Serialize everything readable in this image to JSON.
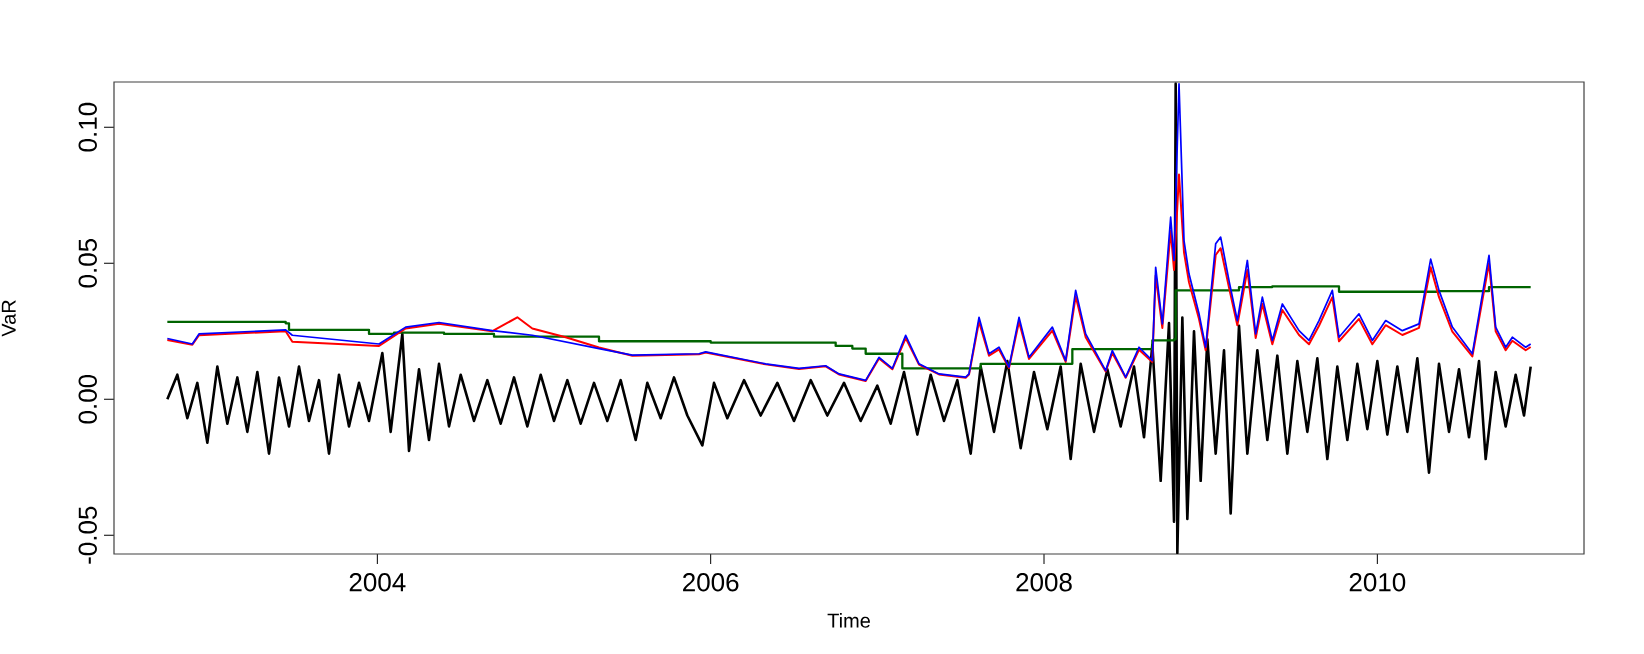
{
  "chart_data": {
    "type": "line",
    "xlabel": "Time",
    "ylabel": "VaR",
    "xlim": [
      2002.42,
      2011.24
    ],
    "ylim": [
      -0.0569,
      0.1166
    ],
    "xticks": [
      2004,
      2006,
      2008,
      2010
    ],
    "yticks": [
      {
        "value": -0.05,
        "label": "-0.05"
      },
      {
        "value": 0,
        "label": "0.00"
      },
      {
        "value": 0.05,
        "label": "0.05"
      },
      {
        "value": 0.1,
        "label": "0.10"
      }
    ],
    "series": [
      {
        "color": "#000000",
        "x": [
          2002.74,
          2002.8,
          2002.86,
          2002.92,
          2002.98,
          2003.04,
          2003.1,
          2003.16,
          2003.22,
          2003.28,
          2003.35,
          2003.41,
          2003.47,
          2003.53,
          2003.59,
          2003.65,
          2003.71,
          2003.77,
          2003.83,
          2003.89,
          2003.95,
          2004.03,
          2004.08,
          2004.15,
          2004.19,
          2004.25,
          2004.31,
          2004.37,
          2004.43,
          2004.5,
          2004.58,
          2004.66,
          2004.74,
          2004.82,
          2004.9,
          2004.98,
          2005.06,
          2005.14,
          2005.22,
          2005.3,
          2005.38,
          2005.46,
          2005.55,
          2005.62,
          2005.7,
          2005.78,
          2005.86,
          2005.95,
          2006.02,
          2006.1,
          2006.2,
          2006.3,
          2006.4,
          2006.5,
          2006.6,
          2006.7,
          2006.8,
          2006.9,
          2007.0,
          2007.08,
          2007.16,
          2007.24,
          2007.32,
          2007.4,
          2007.48,
          2007.56,
          2007.62,
          2007.7,
          2007.78,
          2007.86,
          2007.94,
          2008.02,
          2008.1,
          2008.16,
          2008.22,
          2008.3,
          2008.38,
          2008.46,
          2008.54,
          2008.6,
          2008.65,
          2008.7,
          2008.75,
          2008.78,
          2008.79,
          2008.8,
          2008.83,
          2008.86,
          2008.9,
          2008.94,
          2008.98,
          2009.03,
          2009.08,
          2009.12,
          2009.17,
          2009.22,
          2009.28,
          2009.34,
          2009.4,
          2009.46,
          2009.52,
          2009.58,
          2009.64,
          2009.7,
          2009.76,
          2009.82,
          2009.88,
          2009.94,
          2010.0,
          2010.06,
          2010.12,
          2010.18,
          2010.24,
          2010.31,
          2010.37,
          2010.43,
          2010.49,
          2010.55,
          2010.61,
          2010.65,
          2010.71,
          2010.77,
          2010.83,
          2010.88,
          2010.92
        ],
        "values": [
          0.0,
          0.009,
          -0.007,
          0.006,
          -0.016,
          0.012,
          -0.009,
          0.008,
          -0.012,
          0.01,
          -0.02,
          0.008,
          -0.01,
          0.012,
          -0.008,
          0.007,
          -0.02,
          0.009,
          -0.01,
          0.006,
          -0.008,
          0.017,
          -0.012,
          0.024,
          -0.019,
          0.011,
          -0.015,
          0.013,
          -0.01,
          0.009,
          -0.008,
          0.007,
          -0.009,
          0.008,
          -0.01,
          0.009,
          -0.008,
          0.007,
          -0.009,
          0.006,
          -0.008,
          0.007,
          -0.015,
          0.006,
          -0.007,
          0.008,
          -0.006,
          -0.017,
          0.006,
          -0.007,
          0.007,
          -0.006,
          0.006,
          -0.008,
          0.007,
          -0.006,
          0.006,
          -0.008,
          0.005,
          -0.009,
          0.01,
          -0.013,
          0.009,
          -0.008,
          0.007,
          -0.02,
          0.012,
          -0.012,
          0.014,
          -0.018,
          0.01,
          -0.011,
          0.012,
          -0.022,
          0.013,
          -0.012,
          0.011,
          -0.01,
          0.012,
          -0.014,
          0.02,
          -0.03,
          0.028,
          -0.045,
          0.116,
          -0.0565,
          0.03,
          -0.044,
          0.025,
          -0.03,
          0.022,
          -0.02,
          0.018,
          -0.042,
          0.027,
          -0.02,
          0.018,
          -0.015,
          0.016,
          -0.02,
          0.014,
          -0.012,
          0.015,
          -0.022,
          0.012,
          -0.015,
          0.013,
          -0.011,
          0.014,
          -0.013,
          0.012,
          -0.012,
          0.015,
          -0.027,
          0.013,
          -0.012,
          0.011,
          -0.014,
          0.014,
          -0.022,
          0.01,
          -0.01,
          0.009,
          -0.006,
          0.012
        ]
      },
      {
        "color": "#006400",
        "type": "step",
        "x": [
          2002.74,
          2003.45,
          2003.47,
          2003.95,
          2004.1,
          2004.4,
          2004.7,
          2005.33,
          2006.0,
          2006.75,
          2006.85,
          2006.93,
          2007.15,
          2007.57,
          2007.62,
          2008.17,
          2008.65,
          2008.78,
          2008.79,
          2009.17,
          2009.37,
          2009.77,
          2010.37,
          2010.67,
          2010.92
        ],
        "values": [
          0.0284,
          0.0279,
          0.0255,
          0.024,
          0.0245,
          0.024,
          0.023,
          0.0213,
          0.0208,
          0.0196,
          0.0186,
          0.0167,
          0.0113,
          0.0113,
          0.013,
          0.0184,
          0.0216,
          0.022,
          0.04,
          0.0412,
          0.0415,
          0.0395,
          0.0397,
          0.0412,
          0.0412
        ]
      },
      {
        "color": "#ff0000",
        "x": [
          2002.74,
          2002.89,
          2002.93,
          2003.45,
          2003.49,
          2004.01,
          2004.17,
          2004.37,
          2004.69,
          2004.84,
          2004.93,
          2005.13,
          2005.33,
          2005.53,
          2005.93,
          2005.97,
          2006.33,
          2006.53,
          2006.69,
          2006.77,
          2006.93,
          2007.01,
          2007.09,
          2007.17,
          2007.25,
          2007.37,
          2007.53,
          2007.55,
          2007.61,
          2007.67,
          2007.73,
          2007.79,
          2007.85,
          2007.91,
          2008.05,
          2008.13,
          2008.19,
          2008.25,
          2008.37,
          2008.41,
          2008.49,
          2008.57,
          2008.65,
          2008.67,
          2008.71,
          2008.76,
          2008.78,
          2008.81,
          2008.84,
          2008.87,
          2008.93,
          2008.97,
          2009.03,
          2009.06,
          2009.11,
          2009.16,
          2009.22,
          2009.27,
          2009.31,
          2009.37,
          2009.43,
          2009.53,
          2009.59,
          2009.65,
          2009.73,
          2009.77,
          2009.89,
          2009.97,
          2010.05,
          2010.15,
          2010.25,
          2010.32,
          2010.37,
          2010.45,
          2010.57,
          2010.67,
          2010.71,
          2010.77,
          2010.81,
          2010.89,
          2010.92
        ],
        "values": [
          0.0218,
          0.02,
          0.0235,
          0.025,
          0.0211,
          0.0196,
          0.026,
          0.0277,
          0.025,
          0.0301,
          0.026,
          0.0228,
          0.019,
          0.016,
          0.0165,
          0.0172,
          0.0128,
          0.0111,
          0.0121,
          0.0091,
          0.0067,
          0.015,
          0.011,
          0.0225,
          0.0127,
          0.0091,
          0.0079,
          0.0091,
          0.0285,
          0.016,
          0.0183,
          0.0115,
          0.0285,
          0.0148,
          0.0252,
          0.0137,
          0.0378,
          0.0228,
          0.0102,
          0.017,
          0.0079,
          0.0182,
          0.0137,
          0.0455,
          0.0262,
          0.062,
          0.0475,
          0.0826,
          0.054,
          0.043,
          0.0295,
          0.018,
          0.053,
          0.0555,
          0.041,
          0.0272,
          0.0475,
          0.0225,
          0.035,
          0.0202,
          0.0328,
          0.0236,
          0.0202,
          0.027,
          0.0375,
          0.0213,
          0.0295,
          0.0202,
          0.0272,
          0.0236,
          0.0262,
          0.0485,
          0.0375,
          0.0248,
          0.0157,
          0.05,
          0.025,
          0.018,
          0.0215,
          0.018,
          0.0192
        ]
      },
      {
        "color": "#0000ff",
        "x": [
          2002.74,
          2002.89,
          2002.93,
          2003.45,
          2003.49,
          2004.01,
          2004.17,
          2004.37,
          2004.69,
          2004.93,
          2005.33,
          2005.53,
          2005.93,
          2005.97,
          2006.33,
          2006.53,
          2006.69,
          2006.77,
          2006.93,
          2007.01,
          2007.09,
          2007.17,
          2007.25,
          2007.37,
          2007.53,
          2007.55,
          2007.61,
          2007.67,
          2007.73,
          2007.79,
          2007.85,
          2007.91,
          2008.05,
          2008.13,
          2008.19,
          2008.25,
          2008.37,
          2008.41,
          2008.49,
          2008.57,
          2008.65,
          2008.67,
          2008.71,
          2008.76,
          2008.78,
          2008.81,
          2008.84,
          2008.87,
          2008.93,
          2008.97,
          2009.03,
          2009.06,
          2009.11,
          2009.16,
          2009.22,
          2009.27,
          2009.31,
          2009.37,
          2009.43,
          2009.53,
          2009.59,
          2009.65,
          2009.73,
          2009.77,
          2009.89,
          2009.97,
          2010.05,
          2010.15,
          2010.25,
          2010.32,
          2010.37,
          2010.45,
          2010.57,
          2010.67,
          2010.71,
          2010.77,
          2010.81,
          2010.89,
          2010.92
        ],
        "values": [
          0.0223,
          0.0203,
          0.024,
          0.0255,
          0.0235,
          0.0203,
          0.0265,
          0.0282,
          0.0252,
          0.0235,
          0.0186,
          0.0162,
          0.0167,
          0.0174,
          0.013,
          0.0113,
          0.0123,
          0.0093,
          0.0069,
          0.0154,
          0.0113,
          0.0235,
          0.013,
          0.0093,
          0.0081,
          0.0093,
          0.0301,
          0.0167,
          0.0191,
          0.0118,
          0.0301,
          0.0154,
          0.0265,
          0.0142,
          0.04,
          0.024,
          0.0105,
          0.0179,
          0.0081,
          0.0191,
          0.0142,
          0.0485,
          0.0277,
          0.0669,
          0.051,
          0.1159,
          0.0583,
          0.0461,
          0.0314,
          0.0191,
          0.0571,
          0.0596,
          0.0436,
          0.0289,
          0.051,
          0.024,
          0.0375,
          0.0216,
          0.035,
          0.0252,
          0.0216,
          0.0289,
          0.04,
          0.0228,
          0.0314,
          0.0216,
          0.0289,
          0.0252,
          0.0277,
          0.0515,
          0.04,
          0.0265,
          0.0167,
          0.0529,
          0.0265,
          0.0191,
          0.0228,
          0.0191,
          0.0203
        ]
      }
    ]
  }
}
